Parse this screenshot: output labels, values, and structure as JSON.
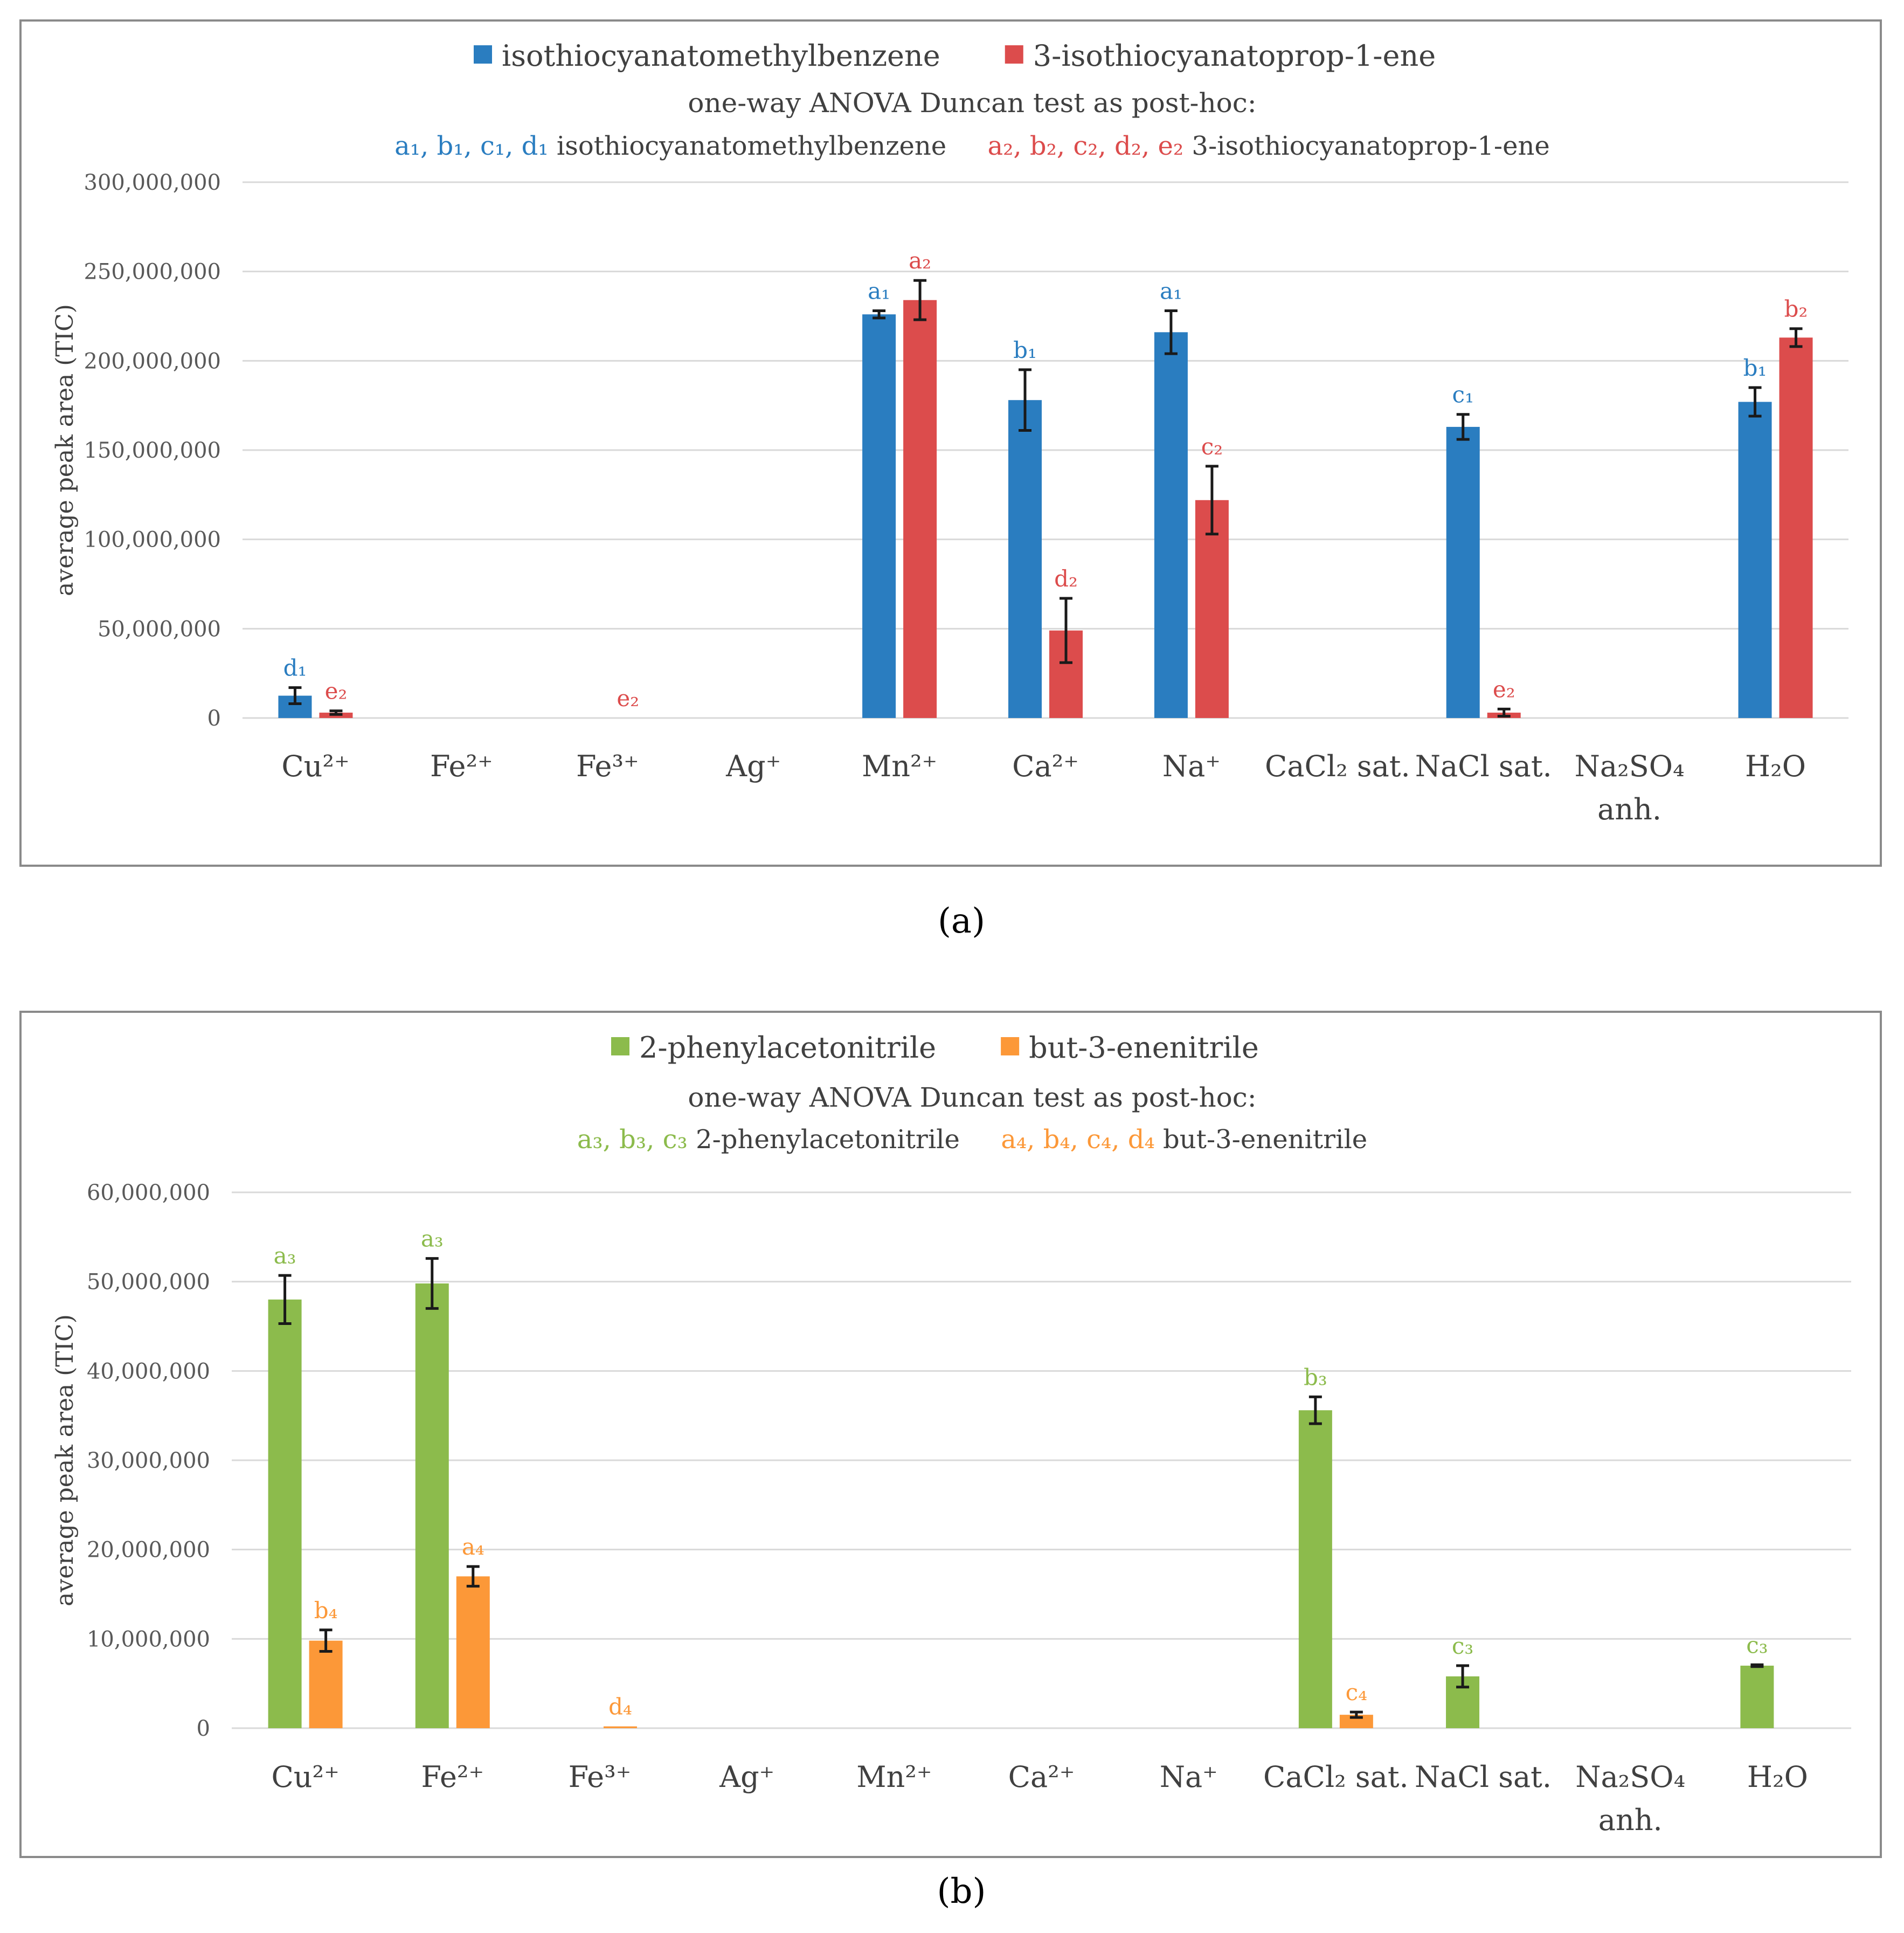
{
  "captions": [
    "(a)",
    "(b)"
  ],
  "colors": {
    "blue": "#2a7dc0",
    "red": "#dc4c4c",
    "green": "#8cbb4c",
    "orange": "#fc9838",
    "text": "#404040"
  },
  "chart_data": [
    {
      "type": "bar",
      "caption": "(a)",
      "legend": [
        {
          "name": "isothiocyanatomethylbenzene",
          "color": "#2a7dc0"
        },
        {
          "name": "3-isothiocyanatoprop-1-ene",
          "color": "#dc4c4c"
        }
      ],
      "subtitle": "one-way ANOVA Duncan test as post-hoc:",
      "significance_legend": [
        {
          "color": "#2a7dc0",
          "letters": [
            "a₁",
            "b₁",
            "c₁",
            "d₁"
          ],
          "text": "isothiocyanatomethylbenzene"
        },
        {
          "color": "#dc4c4c",
          "letters": [
            "a₂",
            "b₂",
            "c₂",
            "d₂",
            "e₂"
          ],
          "text": "3-isothiocyanatoprop-1-ene"
        }
      ],
      "ylabel": "average peak area (TIC)",
      "ylim": [
        0,
        300000000
      ],
      "yticks": [
        "0",
        "50,000,000",
        "100,000,000",
        "150,000,000",
        "200,000,000",
        "250,000,000",
        "300,000,000"
      ],
      "categories": [
        [
          "Cu²⁺"
        ],
        [
          "Fe²⁺"
        ],
        [
          "Fe³⁺"
        ],
        [
          "Ag⁺"
        ],
        [
          "Mn²⁺"
        ],
        [
          "Ca²⁺"
        ],
        [
          "Na⁺"
        ],
        [
          "CaCl₂ sat."
        ],
        [
          "NaCl sat."
        ],
        [
          "Na₂SO₄",
          "anh."
        ],
        [
          "H₂O"
        ]
      ],
      "series": [
        {
          "name": "isothiocyanatomethylbenzene",
          "color": "#2a7dc0",
          "values": [
            12500000,
            0,
            0,
            0,
            226000000,
            178000000,
            216000000,
            0,
            163000000,
            0,
            177000000
          ],
          "errors": [
            4500000,
            0,
            0,
            0,
            2000000,
            17000000,
            12000000,
            0,
            7000000,
            0,
            8000000
          ],
          "labels": [
            "d₁",
            "",
            "",
            "",
            "a₁",
            "b₁",
            "a₁",
            "",
            "c₁",
            "",
            "b₁"
          ]
        },
        {
          "name": "3-isothiocyanatoprop-1-ene",
          "color": "#dc4c4c",
          "values": [
            3000000,
            0,
            0,
            0,
            234000000,
            49000000,
            122000000,
            0,
            3000000,
            0,
            213000000
          ],
          "errors": [
            1000000,
            0,
            0,
            0,
            11000000,
            18000000,
            19000000,
            0,
            2000000,
            0,
            5000000
          ],
          "labels": [
            "e₂",
            "",
            "e₂",
            "",
            "a₂",
            "d₂",
            "c₂",
            "",
            "e₂",
            "",
            "b₂"
          ]
        }
      ]
    },
    {
      "type": "bar",
      "caption": "(b)",
      "legend": [
        {
          "name": "2-phenylacetonitrile",
          "color": "#8cbb4c"
        },
        {
          "name": "but-3-enenitrile",
          "color": "#fc9838"
        }
      ],
      "subtitle": "one-way ANOVA Duncan test as post-hoc:",
      "significance_legend": [
        {
          "color": "#8cbb4c",
          "letters": [
            "a₃",
            "b₃",
            "c₃"
          ],
          "text": "2-phenylacetonitrile"
        },
        {
          "color": "#fc9838",
          "letters": [
            "a₄",
            "b₄",
            "c₄",
            "d₄"
          ],
          "text": "but-3-enenitrile"
        }
      ],
      "ylabel": "average peak area (TIC)",
      "ylim": [
        0,
        60000000
      ],
      "yticks": [
        "0",
        "10,000,000",
        "20,000,000",
        "30,000,000",
        "40,000,000",
        "50,000,000",
        "60,000,000"
      ],
      "categories": [
        [
          "Cu²⁺"
        ],
        [
          "Fe²⁺"
        ],
        [
          "Fe³⁺"
        ],
        [
          "Ag⁺"
        ],
        [
          "Mn²⁺"
        ],
        [
          "Ca²⁺"
        ],
        [
          "Na⁺"
        ],
        [
          "CaCl₂ sat."
        ],
        [
          "NaCl sat."
        ],
        [
          "Na₂SO₄",
          "anh."
        ],
        [
          "H₂O"
        ]
      ],
      "series": [
        {
          "name": "2-phenylacetonitrile",
          "color": "#8cbb4c",
          "values": [
            48000000,
            49800000,
            0,
            0,
            0,
            0,
            0,
            35600000,
            5800000,
            0,
            7000000
          ],
          "errors": [
            2700000,
            2800000,
            0,
            0,
            0,
            0,
            0,
            1500000,
            1200000,
            0,
            100000
          ],
          "labels": [
            "a₃",
            "a₃",
            "",
            "",
            "",
            "",
            "",
            "b₃",
            "c₃",
            "",
            "c₃"
          ]
        },
        {
          "name": "but-3-enenitrile",
          "color": "#fc9838",
          "values": [
            9800000,
            17000000,
            200000,
            0,
            0,
            0,
            0,
            1500000,
            0,
            0,
            0
          ],
          "errors": [
            1200000,
            1100000,
            0,
            0,
            0,
            0,
            0,
            300000,
            0,
            0,
            0
          ],
          "labels": [
            "b₄",
            "a₄",
            "d₄",
            "",
            "",
            "",
            "",
            "c₄",
            "",
            "",
            ""
          ]
        }
      ]
    }
  ]
}
